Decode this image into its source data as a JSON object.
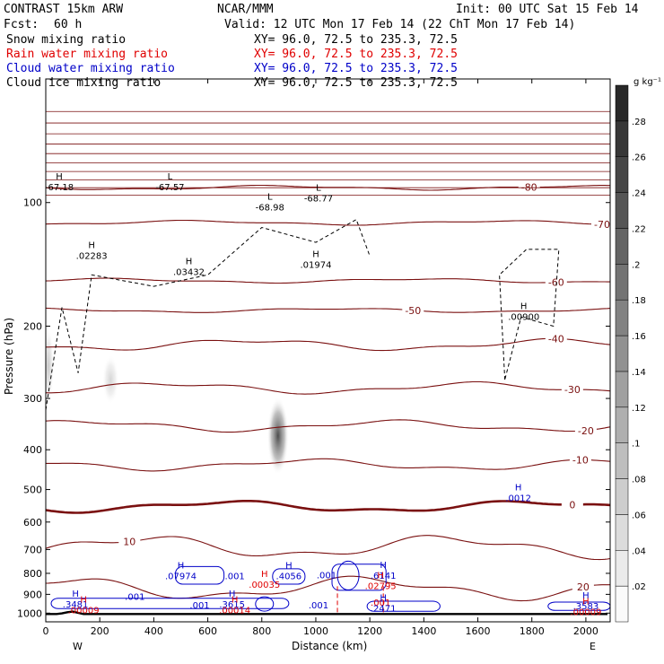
{
  "header": {
    "model": "CONTRAST 15km ARW",
    "org": "NCAR/MMM",
    "init": "Init: 00 UTC Sat 15 Feb 14",
    "fcst_label": "Fcst:",
    "fcst_value": "60 h",
    "valid": "Valid: 12 UTC Mon 17 Feb 14 (22 ChT Mon 17 Feb 14)",
    "xy_text": "XY=  96.0, 72.5 to 235.3, 72.5"
  },
  "fields": [
    {
      "name": "Snow mixing ratio",
      "color": "#000000"
    },
    {
      "name": "Rain water mixing ratio",
      "color": "#e00000"
    },
    {
      "name": "Cloud water mixing ratio",
      "color": "#0000c8"
    },
    {
      "name": "Cloud ice mixing ratio",
      "color": "#000000"
    }
  ],
  "colorbar": {
    "unit": "g kg⁻¹",
    "ticks": [
      ".02",
      ".04",
      ".06",
      ".08",
      ".1",
      ".12",
      ".14",
      ".16",
      ".18",
      ".2",
      ".22",
      ".24",
      ".26",
      ".28"
    ]
  },
  "chart_data": {
    "type": "heatmap",
    "xlabel": "Distance (km)",
    "ylabel": "Pressure (hPa)",
    "x_ticks": [
      0,
      200,
      400,
      600,
      800,
      1000,
      1200,
      1400,
      1600,
      1800,
      2000
    ],
    "y_ticks": [
      100,
      200,
      300,
      400,
      500,
      600,
      700,
      800,
      900,
      1000
    ],
    "xlim": [
      0,
      2090
    ],
    "ylim": [
      1050,
      50
    ],
    "y_log": true,
    "left_end_label": "W",
    "right_end_label": "E",
    "temp_contours": [
      {
        "value": -80,
        "label": "-80",
        "label_x": 1790,
        "base_p": 92
      },
      {
        "value": -70,
        "label": "-70",
        "label_x": 2060,
        "base_p": 112
      },
      {
        "value": -60,
        "label": "-60",
        "label_x": 1890,
        "base_p": 155
      },
      {
        "value": -50,
        "label": "-50",
        "label_x": 1360,
        "base_p": 183
      },
      {
        "value": -40,
        "label": "-40",
        "label_x": 1890,
        "base_p": 222
      },
      {
        "value": -30,
        "label": "-30",
        "label_x": 1950,
        "base_p": 283
      },
      {
        "value": -20,
        "label": "-20",
        "label_x": 2000,
        "base_p": 350
      },
      {
        "value": -10,
        "label": "-10",
        "label_x": 1980,
        "base_p": 435
      },
      {
        "value": 0,
        "label": "0",
        "label_x": 1950,
        "base_p": 550
      },
      {
        "value": 10,
        "label": "10",
        "label_x": 310,
        "base_p": 690
      },
      {
        "value": 20,
        "label": "20",
        "label_x": 1990,
        "base_p": 870
      }
    ],
    "extrema_labels": [
      {
        "kind": "H",
        "value": ".02283",
        "x": 170,
        "p": 135,
        "color": "#000000"
      },
      {
        "kind": "H",
        "value": ".03432",
        "x": 530,
        "p": 148,
        "color": "#000000"
      },
      {
        "kind": "H",
        "value": ".01974",
        "x": 1000,
        "p": 142,
        "color": "#000000"
      },
      {
        "kind": "H",
        "value": ".00900",
        "x": 1770,
        "p": 190,
        "color": "#000000"
      },
      {
        "kind": "H",
        "value": "-67.18",
        "x": 50,
        "p": 92,
        "color": "#000000"
      },
      {
        "kind": "L",
        "value": "-67.57",
        "x": 460,
        "p": 92,
        "color": "#000000"
      },
      {
        "kind": "L",
        "value": "-68.98",
        "x": 830,
        "p": 103,
        "color": "#000000"
      },
      {
        "kind": "L",
        "value": "-68.77",
        "x": 1010,
        "p": 98,
        "color": "#000000"
      },
      {
        "kind": "H",
        "value": ".0012",
        "x": 1750,
        "p": 525,
        "color": "#0000c8"
      },
      {
        "kind": "H",
        "value": ".07974",
        "x": 500,
        "p": 815,
        "color": "#0000c8"
      },
      {
        "kind": "",
        "value": ".001",
        "x": 700,
        "p": 815,
        "color": "#0000c8"
      },
      {
        "kind": "H",
        "value": ".4056",
        "x": 900,
        "p": 815,
        "color": "#0000c8"
      },
      {
        "kind": "",
        "value": ".001",
        "x": 1040,
        "p": 810,
        "color": "#0000c8"
      },
      {
        "kind": "H",
        "value": ".6141",
        "x": 1250,
        "p": 812,
        "color": "#0000c8"
      },
      {
        "kind": "H",
        "value": ".00035",
        "x": 810,
        "p": 855,
        "color": "#e00000"
      },
      {
        "kind": "H",
        "value": ".02795",
        "x": 1240,
        "p": 860,
        "color": "#e00000"
      },
      {
        "kind": "",
        "value": ".001",
        "x": 330,
        "p": 915,
        "color": "#0000c8"
      },
      {
        "kind": "H",
        "value": ".3481",
        "x": 110,
        "p": 955,
        "color": "#0000c8"
      },
      {
        "kind": "H",
        "value": ".00009",
        "x": 140,
        "p": 985,
        "color": "#e00000"
      },
      {
        "kind": "",
        "value": ".001",
        "x": 570,
        "p": 960,
        "color": "#0000c8"
      },
      {
        "kind": "H",
        "value": ".3615",
        "x": 690,
        "p": 955,
        "color": "#0000c8"
      },
      {
        "kind": "H",
        "value": ".00014",
        "x": 700,
        "p": 985,
        "color": "#e00000"
      },
      {
        "kind": "",
        "value": ".001",
        "x": 1010,
        "p": 960,
        "color": "#0000c8"
      },
      {
        "kind": "",
        "value": ".001",
        "x": 1240,
        "p": 945,
        "color": "#e00000"
      },
      {
        "kind": "H",
        "value": ".2471",
        "x": 1250,
        "p": 975,
        "color": "#0000c8"
      },
      {
        "kind": "H",
        "value": ".3583",
        "x": 2000,
        "p": 965,
        "color": "#0000c8"
      },
      {
        "kind": "H",
        "value": ".00009",
        "x": 2000,
        "p": 995,
        "color": "#e00000"
      }
    ],
    "snow_blobs": [
      {
        "x": 860,
        "p": 370,
        "dx": 40,
        "dp": 90,
        "peak": 0.26
      },
      {
        "x": 240,
        "p": 270,
        "dx": 30,
        "dp": 40,
        "peak": 0.06
      },
      {
        "x": 10,
        "p": 250,
        "dx": 20,
        "dp": 60,
        "peak": 0.08
      }
    ]
  }
}
